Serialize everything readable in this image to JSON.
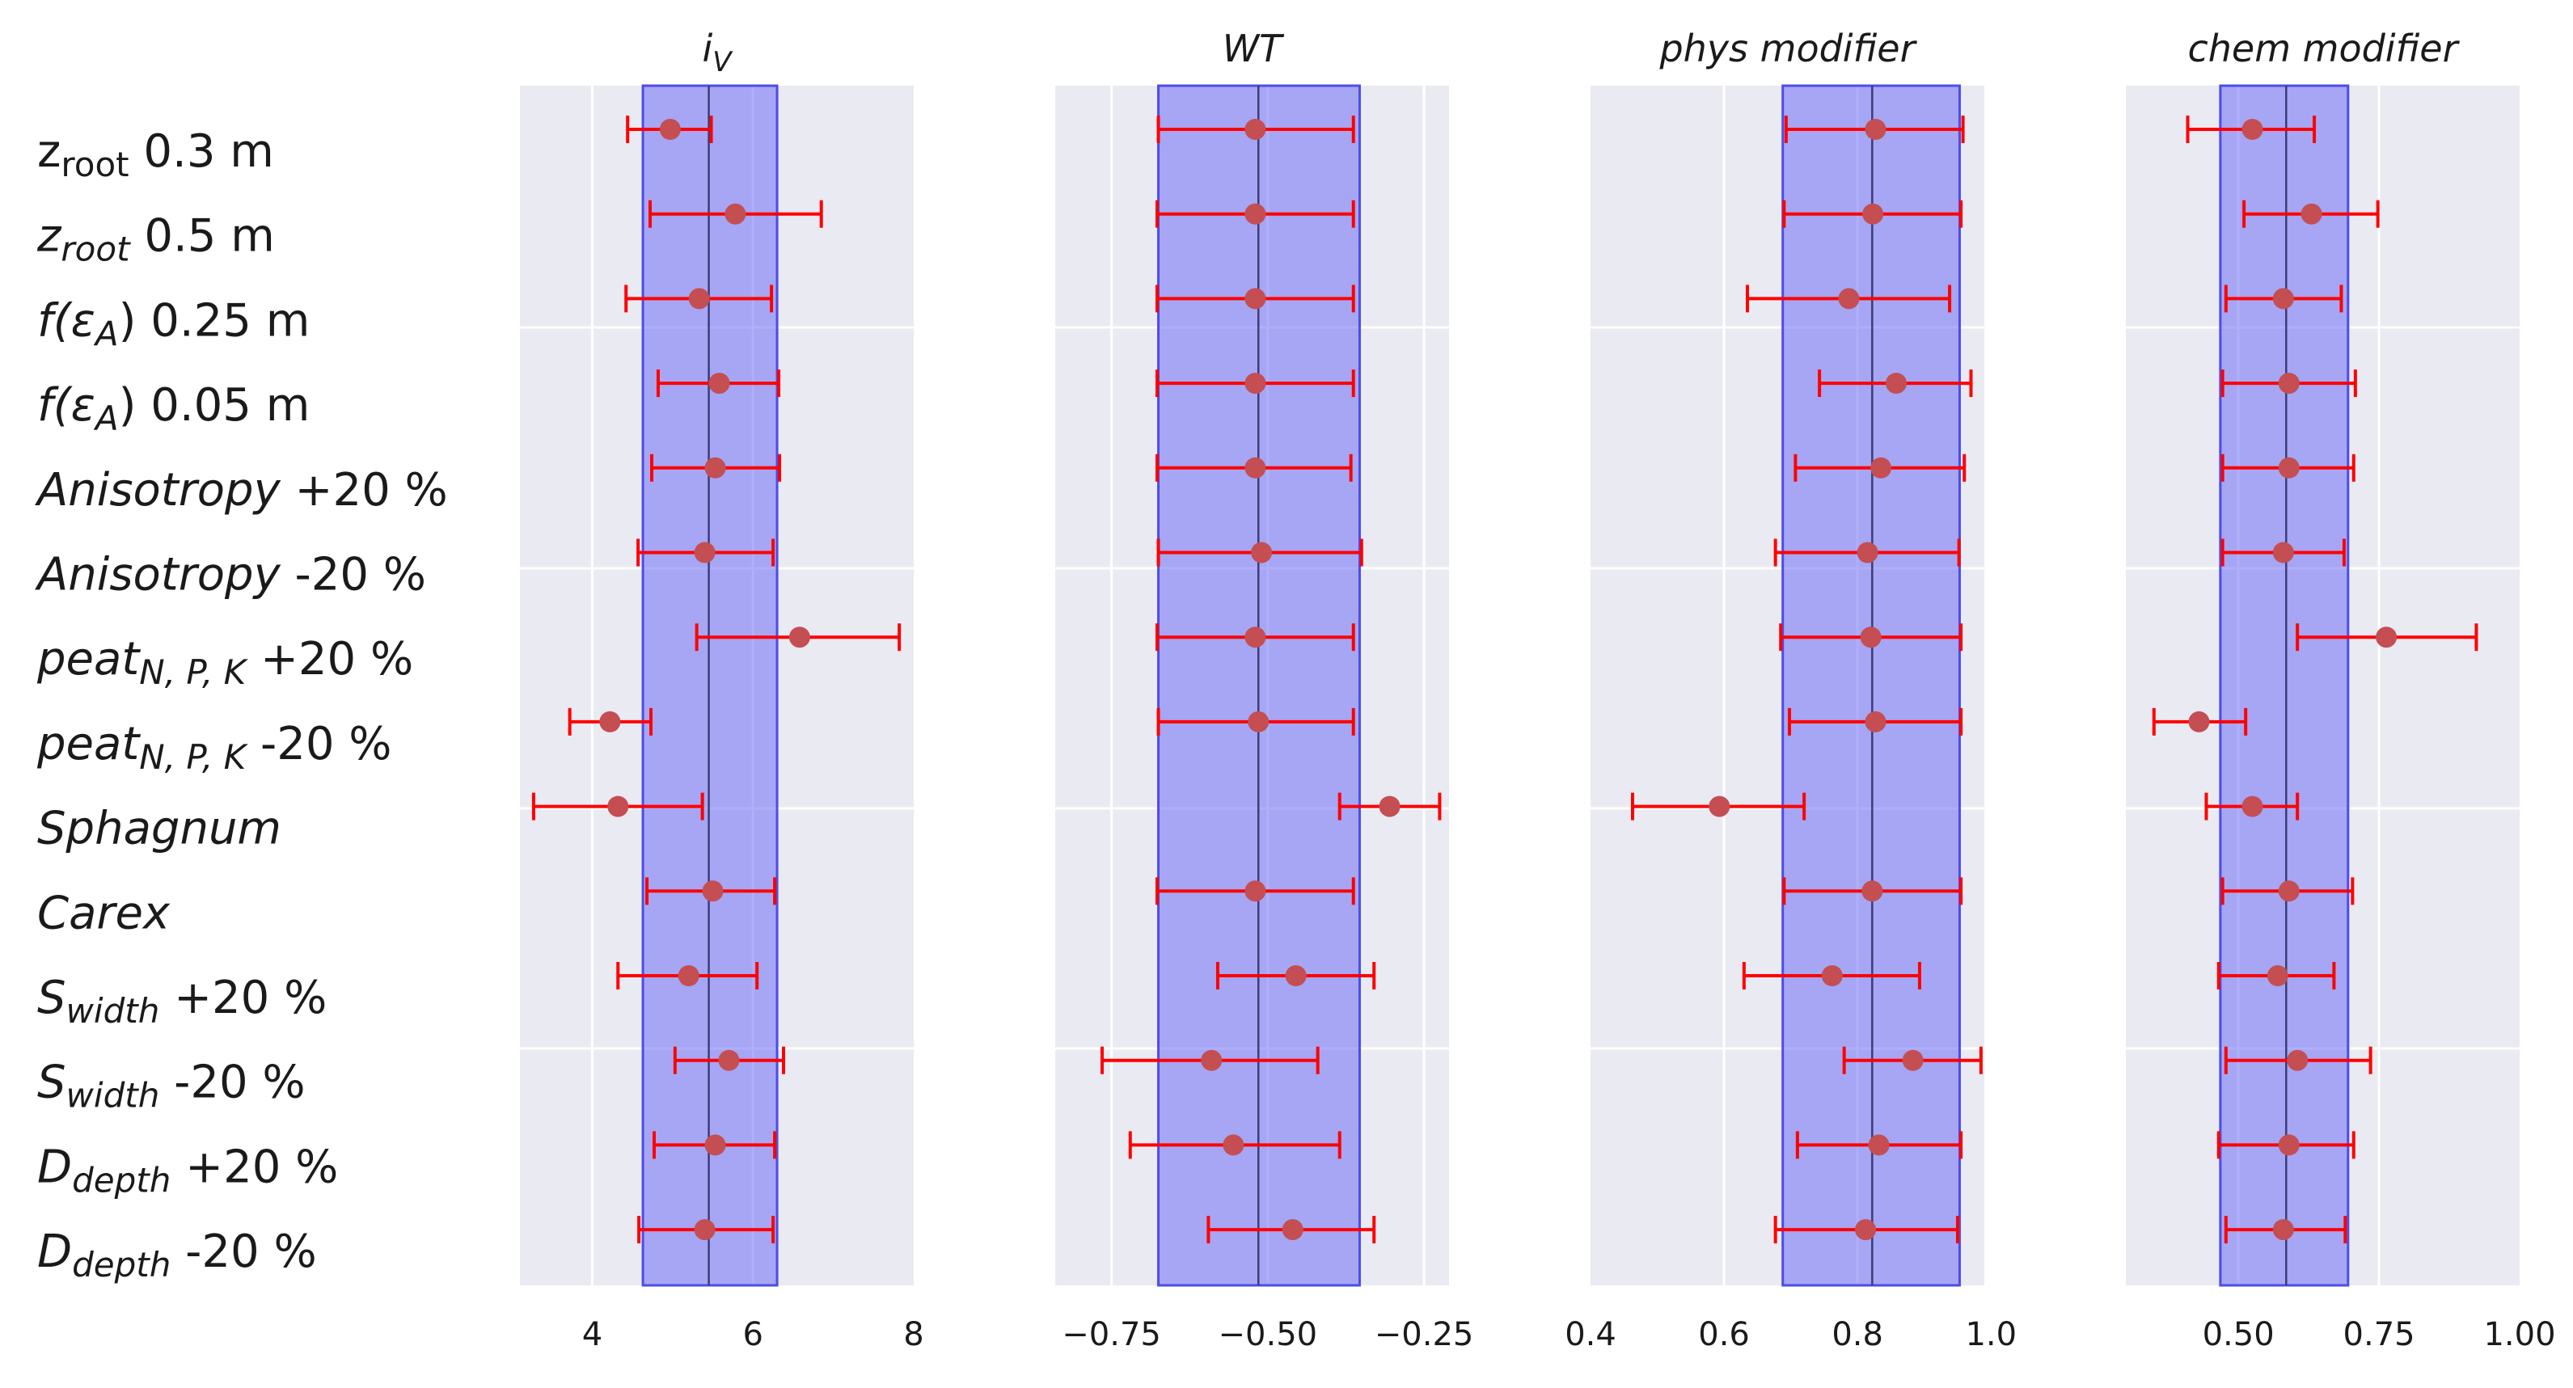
{
  "chart_data": {
    "type": "scatter",
    "description_free": true,
    "rows": [
      {
        "label": {
          "base": "z",
          "sub": "root",
          "rest": " 0.3 m",
          "italic": false
        }
      },
      {
        "label": {
          "base": "z",
          "sub": "root",
          "rest": " 0.5 m",
          "italic": true
        }
      },
      {
        "label": {
          "pre": "f(ε",
          "sub": "A",
          "rest": ")  0.25 m",
          "italic": true
        }
      },
      {
        "label": {
          "pre": "f(ε",
          "sub": "A",
          "rest": ")  0.05 m",
          "italic": true
        }
      },
      {
        "label": {
          "base": "Anisotropy",
          "sub": "",
          "rest": " +20 %",
          "italic": true
        }
      },
      {
        "label": {
          "base": "Anisotropy",
          "sub": "",
          "rest": " -20 %",
          "italic": true
        }
      },
      {
        "label": {
          "base": "peat",
          "sub": "N, P, K",
          "rest": " +20 %",
          "italic": true
        }
      },
      {
        "label": {
          "base": "peat",
          "sub": "N, P, K",
          "rest": " -20 %",
          "italic": true
        }
      },
      {
        "label": {
          "base": "Sphagnum",
          "sub": "",
          "rest": "",
          "italic": true
        }
      },
      {
        "label": {
          "base": "Carex",
          "sub": "",
          "rest": "",
          "italic": true
        }
      },
      {
        "label": {
          "base": "S",
          "sub": "width",
          "rest": " +20 %",
          "italic": true
        }
      },
      {
        "label": {
          "base": "S",
          "sub": "width",
          "rest": " -20 %",
          "italic": true
        }
      },
      {
        "label": {
          "base": "D",
          "sub": "depth",
          "rest": " +20 %",
          "italic": true
        }
      },
      {
        "label": {
          "base": "D",
          "sub": "depth",
          "rest": " -20 %",
          "italic": true
        }
      }
    ],
    "row_labels_text": [
      "zroot 0.3 m",
      "zroot 0.5 m",
      "f(εA)  0.25 m",
      "f(εA)  0.05 m",
      "Anisotropy +20 %",
      "Anisotropy -20 %",
      "peatN, P, K +20 %",
      "peatN, P, K -20 %",
      "Sphagnum",
      "Carex",
      "Swidth +20 %",
      "Swidth -20 %",
      "Ddepth +20 %",
      "Ddepth -20 %"
    ],
    "panels": [
      {
        "title": {
          "base": "i",
          "sub": "V"
        },
        "title_text": "iV",
        "xlim": [
          3.1,
          8.0
        ],
        "xticks": [
          4,
          6,
          8
        ],
        "xtick_labels": [
          "4",
          "6",
          "8"
        ],
        "ref_line": 5.45,
        "band": [
          4.63,
          6.3
        ],
        "points": [
          {
            "mean": 4.97,
            "low": 4.44,
            "high": 5.48
          },
          {
            "mean": 5.78,
            "low": 4.72,
            "high": 6.85
          },
          {
            "mean": 5.33,
            "low": 4.42,
            "high": 6.23
          },
          {
            "mean": 5.58,
            "low": 4.82,
            "high": 6.32
          },
          {
            "mean": 5.53,
            "low": 4.74,
            "high": 6.33
          },
          {
            "mean": 5.4,
            "low": 4.57,
            "high": 6.25
          },
          {
            "mean": 6.58,
            "low": 5.3,
            "high": 7.82
          },
          {
            "mean": 4.22,
            "low": 3.72,
            "high": 4.73
          },
          {
            "mean": 4.32,
            "low": 3.27,
            "high": 5.37
          },
          {
            "mean": 5.5,
            "low": 4.68,
            "high": 6.27
          },
          {
            "mean": 5.2,
            "low": 4.32,
            "high": 6.05
          },
          {
            "mean": 5.7,
            "low": 5.03,
            "high": 6.38
          },
          {
            "mean": 5.53,
            "low": 4.77,
            "high": 6.27
          },
          {
            "mean": 5.4,
            "low": 4.58,
            "high": 6.25
          }
        ]
      },
      {
        "title": {
          "base": "WT",
          "sub": ""
        },
        "title_text": "WT",
        "xlim": [
          -0.84,
          -0.21
        ],
        "xticks": [
          -0.75,
          -0.5,
          -0.25
        ],
        "xtick_labels": [
          "−0.75",
          "−0.50",
          "−0.25"
        ],
        "ref_line": -0.515,
        "band": [
          -0.675,
          -0.353
        ],
        "points": [
          {
            "mean": -0.52,
            "low": -0.675,
            "high": -0.363
          },
          {
            "mean": -0.52,
            "low": -0.677,
            "high": -0.363
          },
          {
            "mean": -0.52,
            "low": -0.677,
            "high": -0.363
          },
          {
            "mean": -0.52,
            "low": -0.677,
            "high": -0.363
          },
          {
            "mean": -0.52,
            "low": -0.677,
            "high": -0.367
          },
          {
            "mean": -0.51,
            "low": -0.675,
            "high": -0.35
          },
          {
            "mean": -0.52,
            "low": -0.677,
            "high": -0.363
          },
          {
            "mean": -0.515,
            "low": -0.675,
            "high": -0.363
          },
          {
            "mean": -0.305,
            "low": -0.385,
            "high": -0.225
          },
          {
            "mean": -0.52,
            "low": -0.677,
            "high": -0.363
          },
          {
            "mean": -0.455,
            "low": -0.58,
            "high": -0.33
          },
          {
            "mean": -0.59,
            "low": -0.765,
            "high": -0.42
          },
          {
            "mean": -0.555,
            "low": -0.72,
            "high": -0.385
          },
          {
            "mean": -0.46,
            "low": -0.595,
            "high": -0.33
          }
        ]
      },
      {
        "title": {
          "base": "phys modifier",
          "sub": ""
        },
        "title_text": "phys modifier",
        "xlim": [
          0.4,
          0.99
        ],
        "xticks": [
          0.4,
          0.6,
          0.8,
          1.0
        ],
        "xtick_labels": [
          "0.4",
          "0.6",
          "0.8",
          "1.0"
        ],
        "ref_line": 0.822,
        "band": [
          0.688,
          0.953
        ],
        "points": [
          {
            "mean": 0.827,
            "low": 0.693,
            "high": 0.958
          },
          {
            "mean": 0.823,
            "low": 0.69,
            "high": 0.955
          },
          {
            "mean": 0.787,
            "low": 0.635,
            "high": 0.938
          },
          {
            "mean": 0.858,
            "low": 0.743,
            "high": 0.97
          },
          {
            "mean": 0.835,
            "low": 0.707,
            "high": 0.96
          },
          {
            "mean": 0.815,
            "low": 0.677,
            "high": 0.952
          },
          {
            "mean": 0.82,
            "low": 0.685,
            "high": 0.955
          },
          {
            "mean": 0.827,
            "low": 0.698,
            "high": 0.955
          },
          {
            "mean": 0.593,
            "low": 0.463,
            "high": 0.72
          },
          {
            "mean": 0.822,
            "low": 0.69,
            "high": 0.955
          },
          {
            "mean": 0.762,
            "low": 0.63,
            "high": 0.893
          },
          {
            "mean": 0.883,
            "low": 0.78,
            "high": 0.985
          },
          {
            "mean": 0.832,
            "low": 0.71,
            "high": 0.955
          },
          {
            "mean": 0.812,
            "low": 0.677,
            "high": 0.95
          }
        ]
      },
      {
        "title": {
          "base": "chem modifier",
          "sub": ""
        },
        "title_text": "chem modifier",
        "xlim": [
          0.3,
          1.0
        ],
        "xticks": [
          0.5,
          0.75,
          1.0
        ],
        "xtick_labels": [
          "0.50",
          "0.75",
          "1.00"
        ],
        "ref_line": 0.585,
        "band": [
          0.468,
          0.695
        ],
        "points": [
          {
            "mean": 0.525,
            "low": 0.41,
            "high": 0.635
          },
          {
            "mean": 0.63,
            "low": 0.51,
            "high": 0.748
          },
          {
            "mean": 0.58,
            "low": 0.478,
            "high": 0.683
          },
          {
            "mean": 0.59,
            "low": 0.472,
            "high": 0.708
          },
          {
            "mean": 0.59,
            "low": 0.472,
            "high": 0.705
          },
          {
            "mean": 0.58,
            "low": 0.472,
            "high": 0.688
          },
          {
            "mean": 0.763,
            "low": 0.605,
            "high": 0.923
          },
          {
            "mean": 0.43,
            "low": 0.35,
            "high": 0.513
          },
          {
            "mean": 0.525,
            "low": 0.443,
            "high": 0.605
          },
          {
            "mean": 0.59,
            "low": 0.472,
            "high": 0.703
          },
          {
            "mean": 0.57,
            "low": 0.465,
            "high": 0.67
          },
          {
            "mean": 0.605,
            "low": 0.478,
            "high": 0.735
          },
          {
            "mean": 0.59,
            "low": 0.465,
            "high": 0.705
          },
          {
            "mean": 0.58,
            "low": 0.478,
            "high": 0.69
          }
        ]
      }
    ],
    "colors": {
      "axes_background": "#EAEAF2",
      "grid": "#FFFFFF",
      "band": "#6E6EF5",
      "band_edge": "#4C4CEB",
      "ref_line": "#3C3C78",
      "errorbar": "#FF0000",
      "marker": "#C44E52"
    },
    "grid": true,
    "legend": "none"
  }
}
